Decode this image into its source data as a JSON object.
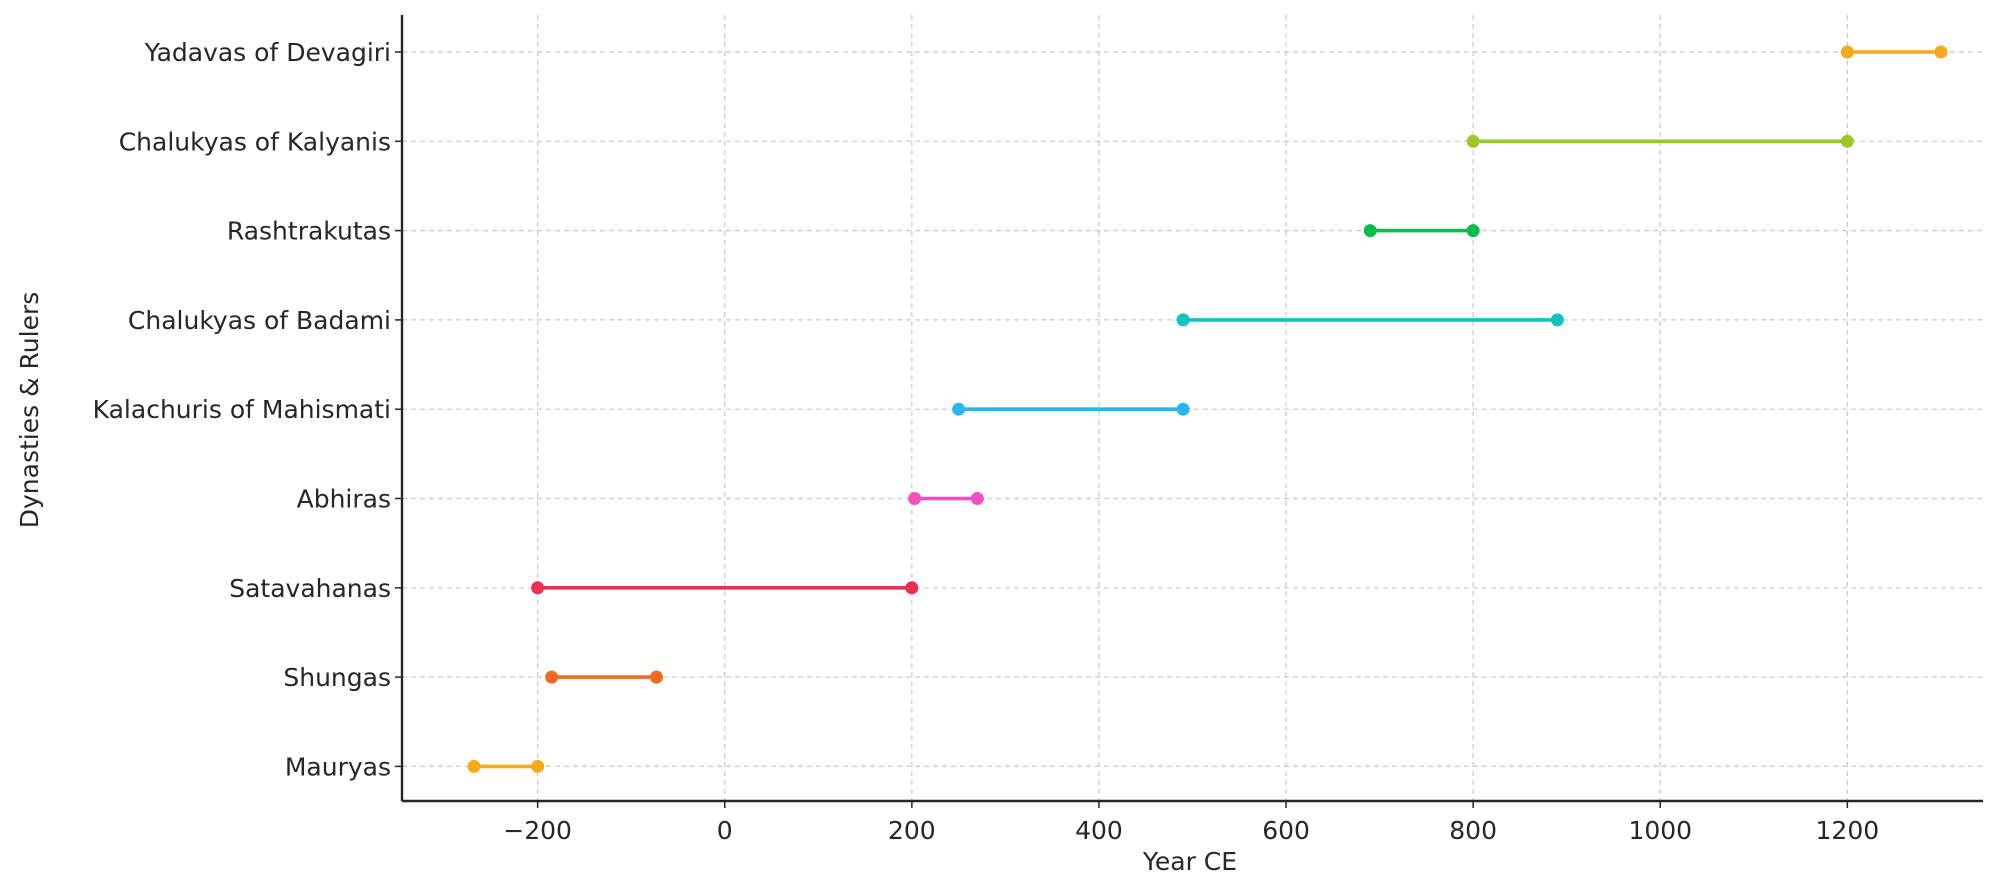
{
  "chart_data": {
    "type": "dumbbell",
    "xlabel": "Year CE",
    "ylabel": "Dynasties & Rulers",
    "xlim": [
      -345,
      1345
    ],
    "xticks": [
      -200,
      0,
      200,
      400,
      600,
      800,
      1000,
      1200
    ],
    "xtick_labels": [
      "−200",
      "0",
      "200",
      "400",
      "600",
      "800",
      "1000",
      "1200"
    ],
    "grid": true,
    "categories": [
      "Mauryas",
      "Shungas",
      "Satavahanas",
      "Abhiras",
      "Kalachuris of Mahismati",
      "Chalukyas of Badami",
      "Rashtrakutas",
      "Chalukyas of Kalyanis",
      "Yadavas of Devagiri"
    ],
    "series": [
      {
        "category": "Mauryas",
        "start": -268,
        "end": -200,
        "color": "#f5a91c"
      },
      {
        "category": "Shungas",
        "start": -185,
        "end": -73,
        "color": "#ee6a24"
      },
      {
        "category": "Satavahanas",
        "start": -200,
        "end": 200,
        "color": "#ee2d52"
      },
      {
        "category": "Abhiras",
        "start": 203,
        "end": 270,
        "color": "#f050c0"
      },
      {
        "category": "Kalachuris of Mahismati",
        "start": 250,
        "end": 490,
        "color": "#2bb5ee"
      },
      {
        "category": "Chalukyas of Badami",
        "start": 490,
        "end": 890,
        "color": "#12c2c2"
      },
      {
        "category": "Rashtrakutas",
        "start": 690,
        "end": 800,
        "color": "#0dbb4c"
      },
      {
        "category": "Chalukyas of Kalyanis",
        "start": 800,
        "end": 1200,
        "color": "#98c82a"
      },
      {
        "category": "Yadavas of Devagiri",
        "start": 1200,
        "end": 1300,
        "color": "#f5a91c"
      }
    ]
  }
}
